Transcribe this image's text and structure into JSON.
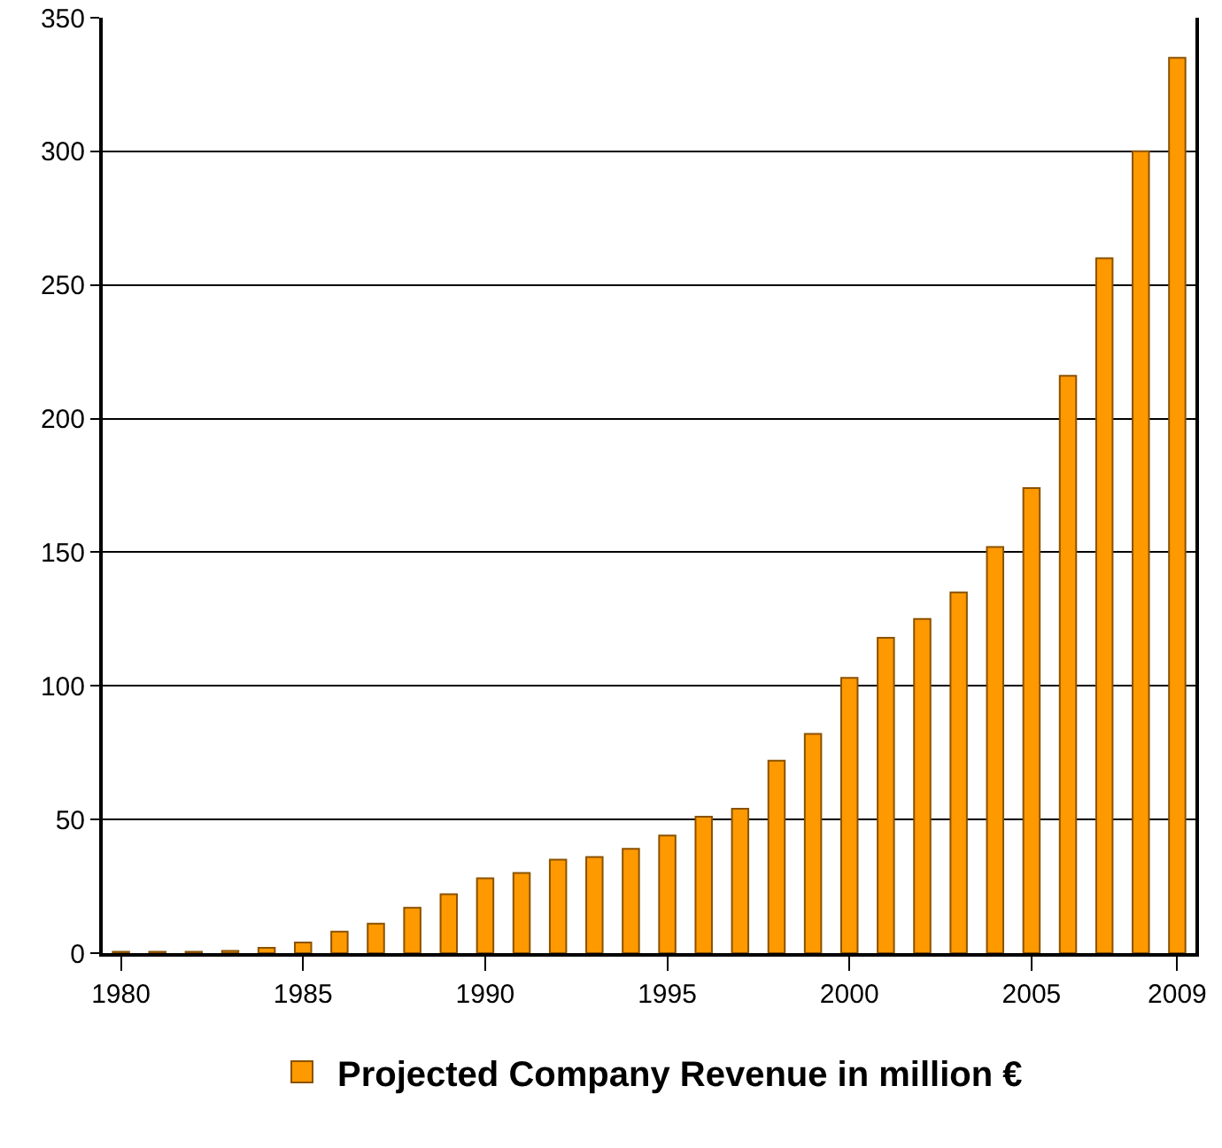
{
  "chart_data": {
    "type": "bar",
    "x": [
      1980,
      1981,
      1982,
      1983,
      1984,
      1985,
      1986,
      1987,
      1988,
      1989,
      1990,
      1991,
      1992,
      1993,
      1994,
      1995,
      1996,
      1997,
      1998,
      1999,
      2000,
      2001,
      2002,
      2003,
      2004,
      2005,
      2006,
      2007,
      2008,
      2009
    ],
    "series": [
      {
        "name": "Projected Company Revenue in million €",
        "color": "#ff9900",
        "values": [
          0.5,
          0.5,
          0.5,
          0.8,
          2,
          4,
          8,
          11,
          17,
          22,
          28,
          30,
          35,
          36,
          39,
          44,
          51,
          54,
          72,
          82,
          103,
          118,
          125,
          135,
          152,
          174,
          216,
          260,
          300,
          335
        ]
      }
    ],
    "xlim": [
      1979.5,
      2009.5
    ],
    "xticks": [
      1980,
      1985,
      1990,
      1995,
      2000,
      2005,
      2009
    ],
    "ylim": [
      0,
      350
    ],
    "yticks": [
      0,
      50,
      100,
      150,
      200,
      250,
      300,
      350
    ],
    "grid": "y",
    "legend": "bottom"
  }
}
